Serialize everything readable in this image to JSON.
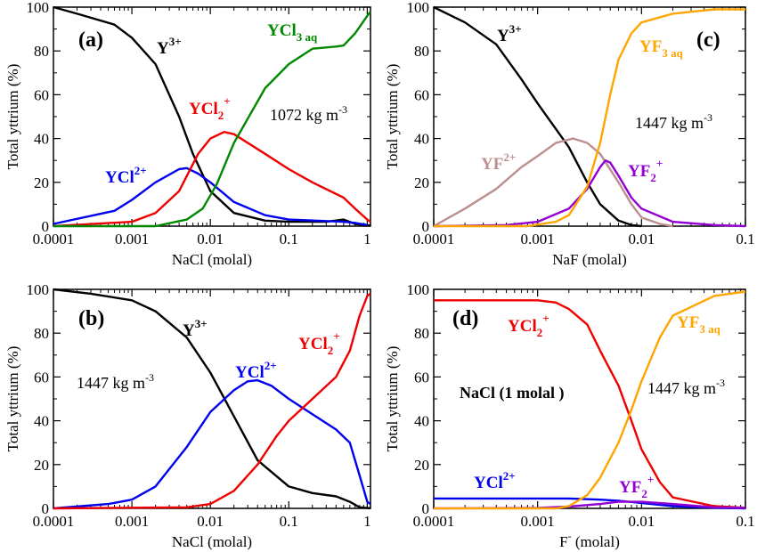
{
  "chart_data": [
    {
      "type": "line",
      "panel_label": "(a)",
      "xlabel": "NaCl (molal)",
      "ylabel": "Total yttrium (%)",
      "x_scale": "log",
      "xlim": [
        0.0001,
        1.1
      ],
      "ylim": [
        0,
        100
      ],
      "x_ticks": [
        "0.0001",
        "0.001",
        "0.01",
        "0.1",
        "1"
      ],
      "y_ticks": [
        "0",
        "20",
        "40",
        "60",
        "80",
        "100"
      ],
      "annotation": {
        "text": "1072 kg m",
        "sup": "-3"
      },
      "series": [
        {
          "name": "Y",
          "sup": "3+",
          "sub": "",
          "color": "#000000",
          "points": [
            [
              0.0001,
              100
            ],
            [
              0.0002,
              97
            ],
            [
              0.0006,
              92
            ],
            [
              0.001,
              86
            ],
            [
              0.002,
              74
            ],
            [
              0.004,
              50
            ],
            [
              0.006,
              33
            ],
            [
              0.01,
              16
            ],
            [
              0.02,
              6
            ],
            [
              0.05,
              2.5
            ],
            [
              0.1,
              2
            ],
            [
              0.3,
              2
            ],
            [
              0.5,
              3
            ],
            [
              0.7,
              1
            ],
            [
              1,
              0.5
            ],
            [
              1.1,
              0.3
            ]
          ]
        },
        {
          "name": "YCl",
          "sup": "2+",
          "sub": "",
          "color": "#0000ee",
          "points": [
            [
              0.0001,
              1
            ],
            [
              0.0006,
              7
            ],
            [
              0.001,
              12
            ],
            [
              0.002,
              20
            ],
            [
              0.004,
              26
            ],
            [
              0.005,
              26.5
            ],
            [
              0.007,
              24
            ],
            [
              0.01,
              20
            ],
            [
              0.02,
              11
            ],
            [
              0.05,
              5
            ],
            [
              0.1,
              3
            ],
            [
              0.5,
              2
            ],
            [
              0.7,
              1.5
            ],
            [
              1,
              0.5
            ]
          ]
        },
        {
          "name": "YCl",
          "sup": "+",
          "sub": "2",
          "color": "#ee0000",
          "points": [
            [
              0.0001,
              0
            ],
            [
              0.001,
              2
            ],
            [
              0.002,
              6
            ],
            [
              0.004,
              16
            ],
            [
              0.007,
              33
            ],
            [
              0.01,
              40
            ],
            [
              0.015,
              43
            ],
            [
              0.02,
              42
            ],
            [
              0.05,
              33
            ],
            [
              0.1,
              26
            ],
            [
              0.2,
              20
            ],
            [
              0.5,
              13
            ],
            [
              0.7,
              8
            ],
            [
              1,
              3
            ],
            [
              1.1,
              2
            ]
          ]
        },
        {
          "name": "YCl",
          "sup": "",
          "sub": "3 aq",
          "color": "#008800",
          "points": [
            [
              0.0001,
              0
            ],
            [
              0.002,
              0
            ],
            [
              0.005,
              3
            ],
            [
              0.008,
              8
            ],
            [
              0.012,
              19
            ],
            [
              0.02,
              38
            ],
            [
              0.05,
              63
            ],
            [
              0.1,
              74
            ],
            [
              0.2,
              81
            ],
            [
              0.4,
              82
            ],
            [
              0.5,
              82.5
            ],
            [
              0.7,
              88
            ],
            [
              1,
              96
            ],
            [
              1.1,
              98
            ]
          ]
        }
      ]
    },
    {
      "type": "line",
      "panel_label": "(b)",
      "xlabel": "NaCl (molal)",
      "ylabel": "Total yttrium (%)",
      "x_scale": "log",
      "xlim": [
        0.0001,
        1.1
      ],
      "ylim": [
        0,
        100
      ],
      "x_ticks": [
        "0.0001",
        "0.001",
        "0.01",
        "0.1",
        "1"
      ],
      "y_ticks": [
        "0",
        "20",
        "40",
        "60",
        "80",
        "100"
      ],
      "annotation": {
        "text": "1447 kg m",
        "sup": "-3"
      },
      "series": [
        {
          "name": "Y",
          "sup": "3+",
          "sub": "",
          "color": "#000000",
          "points": [
            [
              0.0001,
              100
            ],
            [
              0.0003,
              98
            ],
            [
              0.001,
              95
            ],
            [
              0.002,
              90
            ],
            [
              0.005,
              78
            ],
            [
              0.01,
              62
            ],
            [
              0.02,
              42
            ],
            [
              0.04,
              22
            ],
            [
              0.1,
              10
            ],
            [
              0.2,
              7
            ],
            [
              0.4,
              5.5
            ],
            [
              0.6,
              3
            ],
            [
              0.8,
              0.5
            ],
            [
              1.1,
              0.1
            ]
          ]
        },
        {
          "name": "YCl",
          "sup": "2+",
          "sub": "",
          "color": "#0000ee",
          "points": [
            [
              0.0001,
              0
            ],
            [
              0.0005,
              2
            ],
            [
              0.001,
              4
            ],
            [
              0.002,
              10
            ],
            [
              0.005,
              28
            ],
            [
              0.01,
              44
            ],
            [
              0.02,
              54
            ],
            [
              0.03,
              58
            ],
            [
              0.04,
              58.5
            ],
            [
              0.06,
              56
            ],
            [
              0.1,
              50
            ],
            [
              0.2,
              43
            ],
            [
              0.4,
              36
            ],
            [
              0.6,
              30
            ],
            [
              0.8,
              15
            ],
            [
              1,
              3
            ],
            [
              1.1,
              2
            ]
          ]
        },
        {
          "name": "YCl",
          "sup": "+",
          "sub": "2",
          "color": "#ee0000",
          "points": [
            [
              0.0001,
              0
            ],
            [
              0.005,
              0.5
            ],
            [
              0.01,
              2
            ],
            [
              0.02,
              8
            ],
            [
              0.04,
              20
            ],
            [
              0.07,
              33
            ],
            [
              0.1,
              40
            ],
            [
              0.2,
              50
            ],
            [
              0.4,
              60
            ],
            [
              0.6,
              72
            ],
            [
              0.8,
              88
            ],
            [
              1,
              97
            ],
            [
              1.1,
              98
            ]
          ]
        }
      ]
    },
    {
      "type": "line",
      "panel_label": "(c)",
      "xlabel": "NaF (molal)",
      "ylabel": "Total yttrium (%)",
      "x_scale": "log",
      "xlim": [
        0.0001,
        0.1
      ],
      "ylim": [
        0,
        100
      ],
      "x_ticks": [
        "0.0001",
        "0.001",
        "0.01",
        "0.1"
      ],
      "y_ticks": [
        "0",
        "20",
        "40",
        "60",
        "80",
        "100"
      ],
      "annotation": {
        "text": "1447 kg m",
        "sup": "-3"
      },
      "series": [
        {
          "name": "Y",
          "sup": "3+",
          "sub": "",
          "color": "#000000",
          "points": [
            [
              0.0001,
              100
            ],
            [
              0.0002,
              93
            ],
            [
              0.0004,
              83
            ],
            [
              0.0007,
              67
            ],
            [
              0.001,
              56
            ],
            [
              0.002,
              36
            ],
            [
              0.003,
              20
            ],
            [
              0.004,
              10
            ],
            [
              0.006,
              2.5
            ],
            [
              0.008,
              0.5
            ],
            [
              0.01,
              0
            ]
          ]
        },
        {
          "name": "YF",
          "sup": "2+",
          "sub": "",
          "color": "#bc8f8f",
          "points": [
            [
              0.0001,
              0
            ],
            [
              0.0002,
              8
            ],
            [
              0.0004,
              17
            ],
            [
              0.0007,
              27
            ],
            [
              0.001,
              32
            ],
            [
              0.0015,
              38
            ],
            [
              0.0022,
              40
            ],
            [
              0.003,
              38
            ],
            [
              0.004,
              33
            ],
            [
              0.006,
              20
            ],
            [
              0.008,
              10
            ],
            [
              0.01,
              4
            ],
            [
              0.015,
              1
            ],
            [
              0.02,
              0
            ]
          ]
        },
        {
          "name": "YF",
          "sup": "+",
          "sub": "2",
          "color": "#9400d3",
          "points": [
            [
              0.0001,
              0
            ],
            [
              0.0005,
              0.5
            ],
            [
              0.001,
              2
            ],
            [
              0.002,
              8
            ],
            [
              0.003,
              17
            ],
            [
              0.004,
              27
            ],
            [
              0.0045,
              30
            ],
            [
              0.005,
              29
            ],
            [
              0.006,
              23
            ],
            [
              0.008,
              13
            ],
            [
              0.01,
              8
            ],
            [
              0.02,
              2
            ],
            [
              0.05,
              0.5
            ],
            [
              0.1,
              0
            ]
          ]
        },
        {
          "name": "YF",
          "sup": "",
          "sub": "3 aq",
          "color": "#ffa500",
          "points": [
            [
              0.0001,
              0
            ],
            [
              0.0008,
              0
            ],
            [
              0.0015,
              2
            ],
            [
              0.002,
              5
            ],
            [
              0.003,
              18
            ],
            [
              0.004,
              38
            ],
            [
              0.005,
              60
            ],
            [
              0.006,
              76
            ],
            [
              0.008,
              88
            ],
            [
              0.01,
              93
            ],
            [
              0.02,
              97
            ],
            [
              0.05,
              99
            ],
            [
              0.1,
              99
            ]
          ]
        }
      ]
    },
    {
      "type": "line",
      "panel_label": "(d)",
      "xlabel": "F",
      "xlabel_sup": "-",
      "xlabel_suffix": " (molal)",
      "ylabel": "Total yttrium (%)",
      "x_scale": "log",
      "xlim": [
        0.0001,
        0.1
      ],
      "ylim": [
        0,
        100
      ],
      "x_ticks": [
        "0.0001",
        "0.001",
        "0.01",
        "0.1"
      ],
      "y_ticks": [
        "0",
        "20",
        "40",
        "60",
        "80",
        "100"
      ],
      "annotation": {
        "text": "1447 kg m",
        "sup": "-3"
      },
      "note": "NaCl (1 molal )",
      "series": [
        {
          "name": "YCl",
          "sup": "+",
          "sub": "2",
          "color": "#ee0000",
          "points": [
            [
              0.0001,
              95
            ],
            [
              0.001,
              95
            ],
            [
              0.0015,
              94
            ],
            [
              0.002,
              91
            ],
            [
              0.003,
              84
            ],
            [
              0.004,
              72
            ],
            [
              0.006,
              56
            ],
            [
              0.008,
              40
            ],
            [
              0.01,
              27
            ],
            [
              0.015,
              12
            ],
            [
              0.02,
              5
            ],
            [
              0.05,
              1
            ],
            [
              0.1,
              0.3
            ]
          ]
        },
        {
          "name": "YCl",
          "sup": "2+",
          "sub": "",
          "color": "#0000ee",
          "points": [
            [
              0.0001,
              4.5
            ],
            [
              0.002,
              4.5
            ],
            [
              0.004,
              4
            ],
            [
              0.006,
              3.5
            ],
            [
              0.01,
              2.5
            ],
            [
              0.02,
              1
            ],
            [
              0.05,
              0.3
            ],
            [
              0.1,
              0
            ]
          ]
        },
        {
          "name": "YF",
          "sup": "+",
          "sub": "2",
          "color": "#9400d3",
          "points": [
            [
              0.0001,
              0
            ],
            [
              0.001,
              0.2
            ],
            [
              0.002,
              0.8
            ],
            [
              0.004,
              2
            ],
            [
              0.006,
              3
            ],
            [
              0.01,
              3
            ],
            [
              0.02,
              2
            ],
            [
              0.05,
              0.5
            ],
            [
              0.1,
              0.2
            ]
          ]
        },
        {
          "name": "YF",
          "sup": "",
          "sub": "3 aq",
          "color": "#ffa500",
          "points": [
            [
              0.0001,
              0
            ],
            [
              0.0015,
              0
            ],
            [
              0.002,
              1
            ],
            [
              0.003,
              6
            ],
            [
              0.004,
              14
            ],
            [
              0.006,
              30
            ],
            [
              0.008,
              45
            ],
            [
              0.01,
              58
            ],
            [
              0.015,
              78
            ],
            [
              0.02,
              88
            ],
            [
              0.05,
              97
            ],
            [
              0.1,
              99
            ]
          ]
        }
      ]
    }
  ]
}
